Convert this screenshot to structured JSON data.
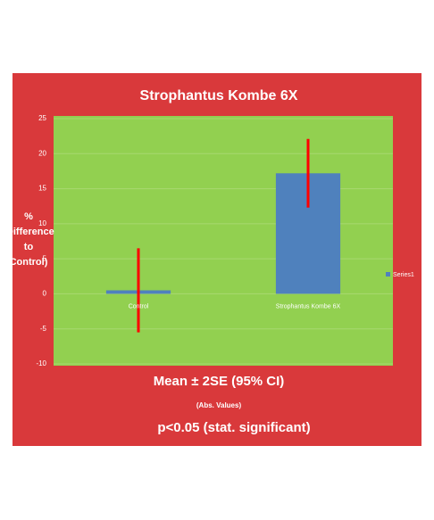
{
  "chart_data": {
    "type": "bar",
    "title": "Strophantus Kombe 6X",
    "y_label": [
      "%",
      "(Difference",
      "to",
      "Control)"
    ],
    "categories": [
      "Control",
      "Strophantus Kombe 6X"
    ],
    "series": [
      {
        "name": "Series1",
        "color": "#4f81bd",
        "values": [
          0.5,
          17.2
        ],
        "errors": [
          6,
          4.9
        ],
        "error_color": "#ff0000"
      }
    ],
    "ylim": [
      -10,
      25
    ],
    "yticks": [
      -10,
      -5,
      0,
      5,
      10,
      15,
      20,
      25
    ],
    "grid": true,
    "legend": "right",
    "annotations": [
      "Mean ± 2SE  (95% CI)",
      "(Abs. Values)",
      "p<0.05 (stat. significant)"
    ]
  }
}
